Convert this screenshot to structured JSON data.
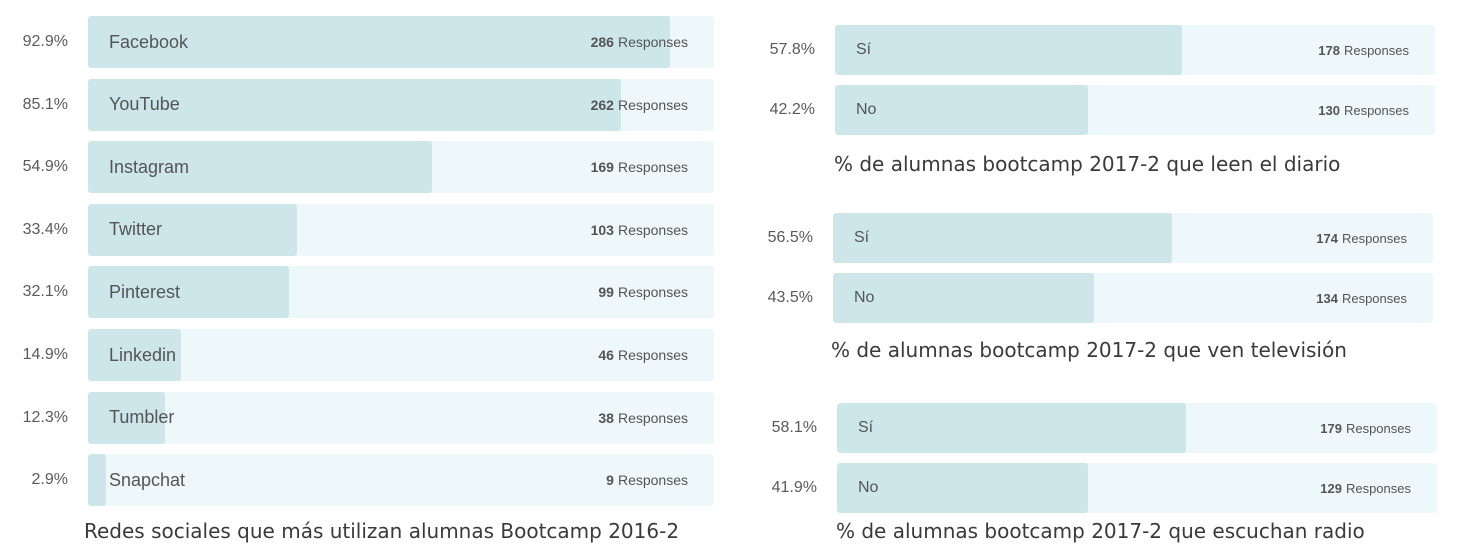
{
  "chart_data": [
    {
      "type": "bar",
      "orientation": "horizontal",
      "title": "Redes sociales que más utilizan alumnas Bootcamp 2016-2",
      "response_suffix": "Responses",
      "rows": [
        {
          "label": "Facebook",
          "percent": "92.9%",
          "value": 92.9,
          "responses": 286
        },
        {
          "label": "YouTube",
          "percent": "85.1%",
          "value": 85.1,
          "responses": 262
        },
        {
          "label": "Instagram",
          "percent": "54.9%",
          "value": 54.9,
          "responses": 169
        },
        {
          "label": "Twitter",
          "percent": "33.4%",
          "value": 33.4,
          "responses": 103
        },
        {
          "label": "Pinterest",
          "percent": "32.1%",
          "value": 32.1,
          "responses": 99
        },
        {
          "label": "Linkedin",
          "percent": "14.9%",
          "value": 14.9,
          "responses": 46
        },
        {
          "label": "Tumbler",
          "percent": "12.3%",
          "value": 12.3,
          "responses": 38
        },
        {
          "label": "Snapchat",
          "percent": "2.9%",
          "value": 2.9,
          "responses": 9
        }
      ],
      "xlim": [
        0,
        100
      ]
    },
    {
      "type": "bar",
      "orientation": "horizontal",
      "title": "% de alumnas bootcamp 2017-2 que leen el diario",
      "response_suffix": "Responses",
      "rows": [
        {
          "label": "Sí",
          "percent": "57.8%",
          "value": 57.8,
          "responses": 178
        },
        {
          "label": "No",
          "percent": "42.2%",
          "value": 42.2,
          "responses": 130
        }
      ],
      "xlim": [
        0,
        100
      ]
    },
    {
      "type": "bar",
      "orientation": "horizontal",
      "title": "% de alumnas bootcamp 2017-2 que ven televisión",
      "response_suffix": "Responses",
      "rows": [
        {
          "label": "Sí",
          "percent": "56.5%",
          "value": 56.5,
          "responses": 174
        },
        {
          "label": "No",
          "percent": "43.5%",
          "value": 43.5,
          "responses": 134
        }
      ],
      "xlim": [
        0,
        100
      ]
    },
    {
      "type": "bar",
      "orientation": "horizontal",
      "title": "% de alumnas bootcamp 2017-2 que escuchan radio",
      "response_suffix": "Responses",
      "rows": [
        {
          "label": "Sí",
          "percent": "58.1%",
          "value": 58.1,
          "responses": 179
        },
        {
          "label": "No",
          "percent": "41.9%",
          "value": 41.9,
          "responses": 129
        }
      ],
      "xlim": [
        0,
        100
      ]
    }
  ],
  "colors": {
    "track": "#eef7f9",
    "fill": "#cde6ea",
    "text": "#555555"
  }
}
